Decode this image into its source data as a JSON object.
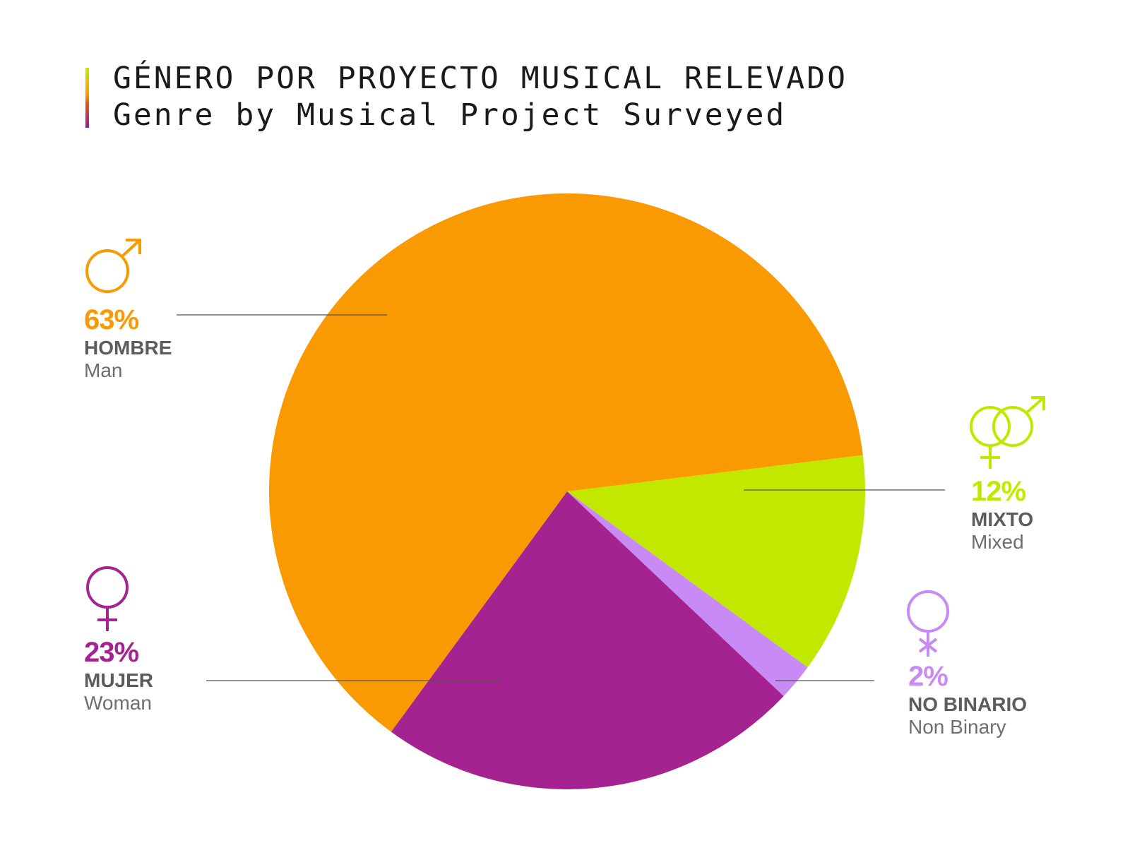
{
  "title": "GÉNERO POR PROYECTO MUSICAL RELEVADO",
  "subtitle": "Genre by Musical Project Surveyed",
  "chart_data": {
    "type": "pie",
    "slices": [
      {
        "key": "hombre",
        "percent": 63,
        "value_label": "63%",
        "label": "HOMBRE",
        "label_en": "Man",
        "color": "#f99a02",
        "icon": "male-symbol-icon"
      },
      {
        "key": "mixto",
        "percent": 12,
        "value_label": "12%",
        "label": "MIXTO",
        "label_en": "Mixed",
        "color": "#c3e800",
        "icon": "mixed-gender-symbol-icon"
      },
      {
        "key": "no_binario",
        "percent": 2,
        "value_label": "2%",
        "label": "NO BINARIO",
        "label_en": "Non Binary",
        "color": "#c88bf5",
        "icon": "non-binary-symbol-icon"
      },
      {
        "key": "mujer",
        "percent": 23,
        "value_label": "23%",
        "label": "MUJER",
        "label_en": "Woman",
        "color": "#a52391",
        "icon": "female-symbol-icon"
      }
    ]
  }
}
